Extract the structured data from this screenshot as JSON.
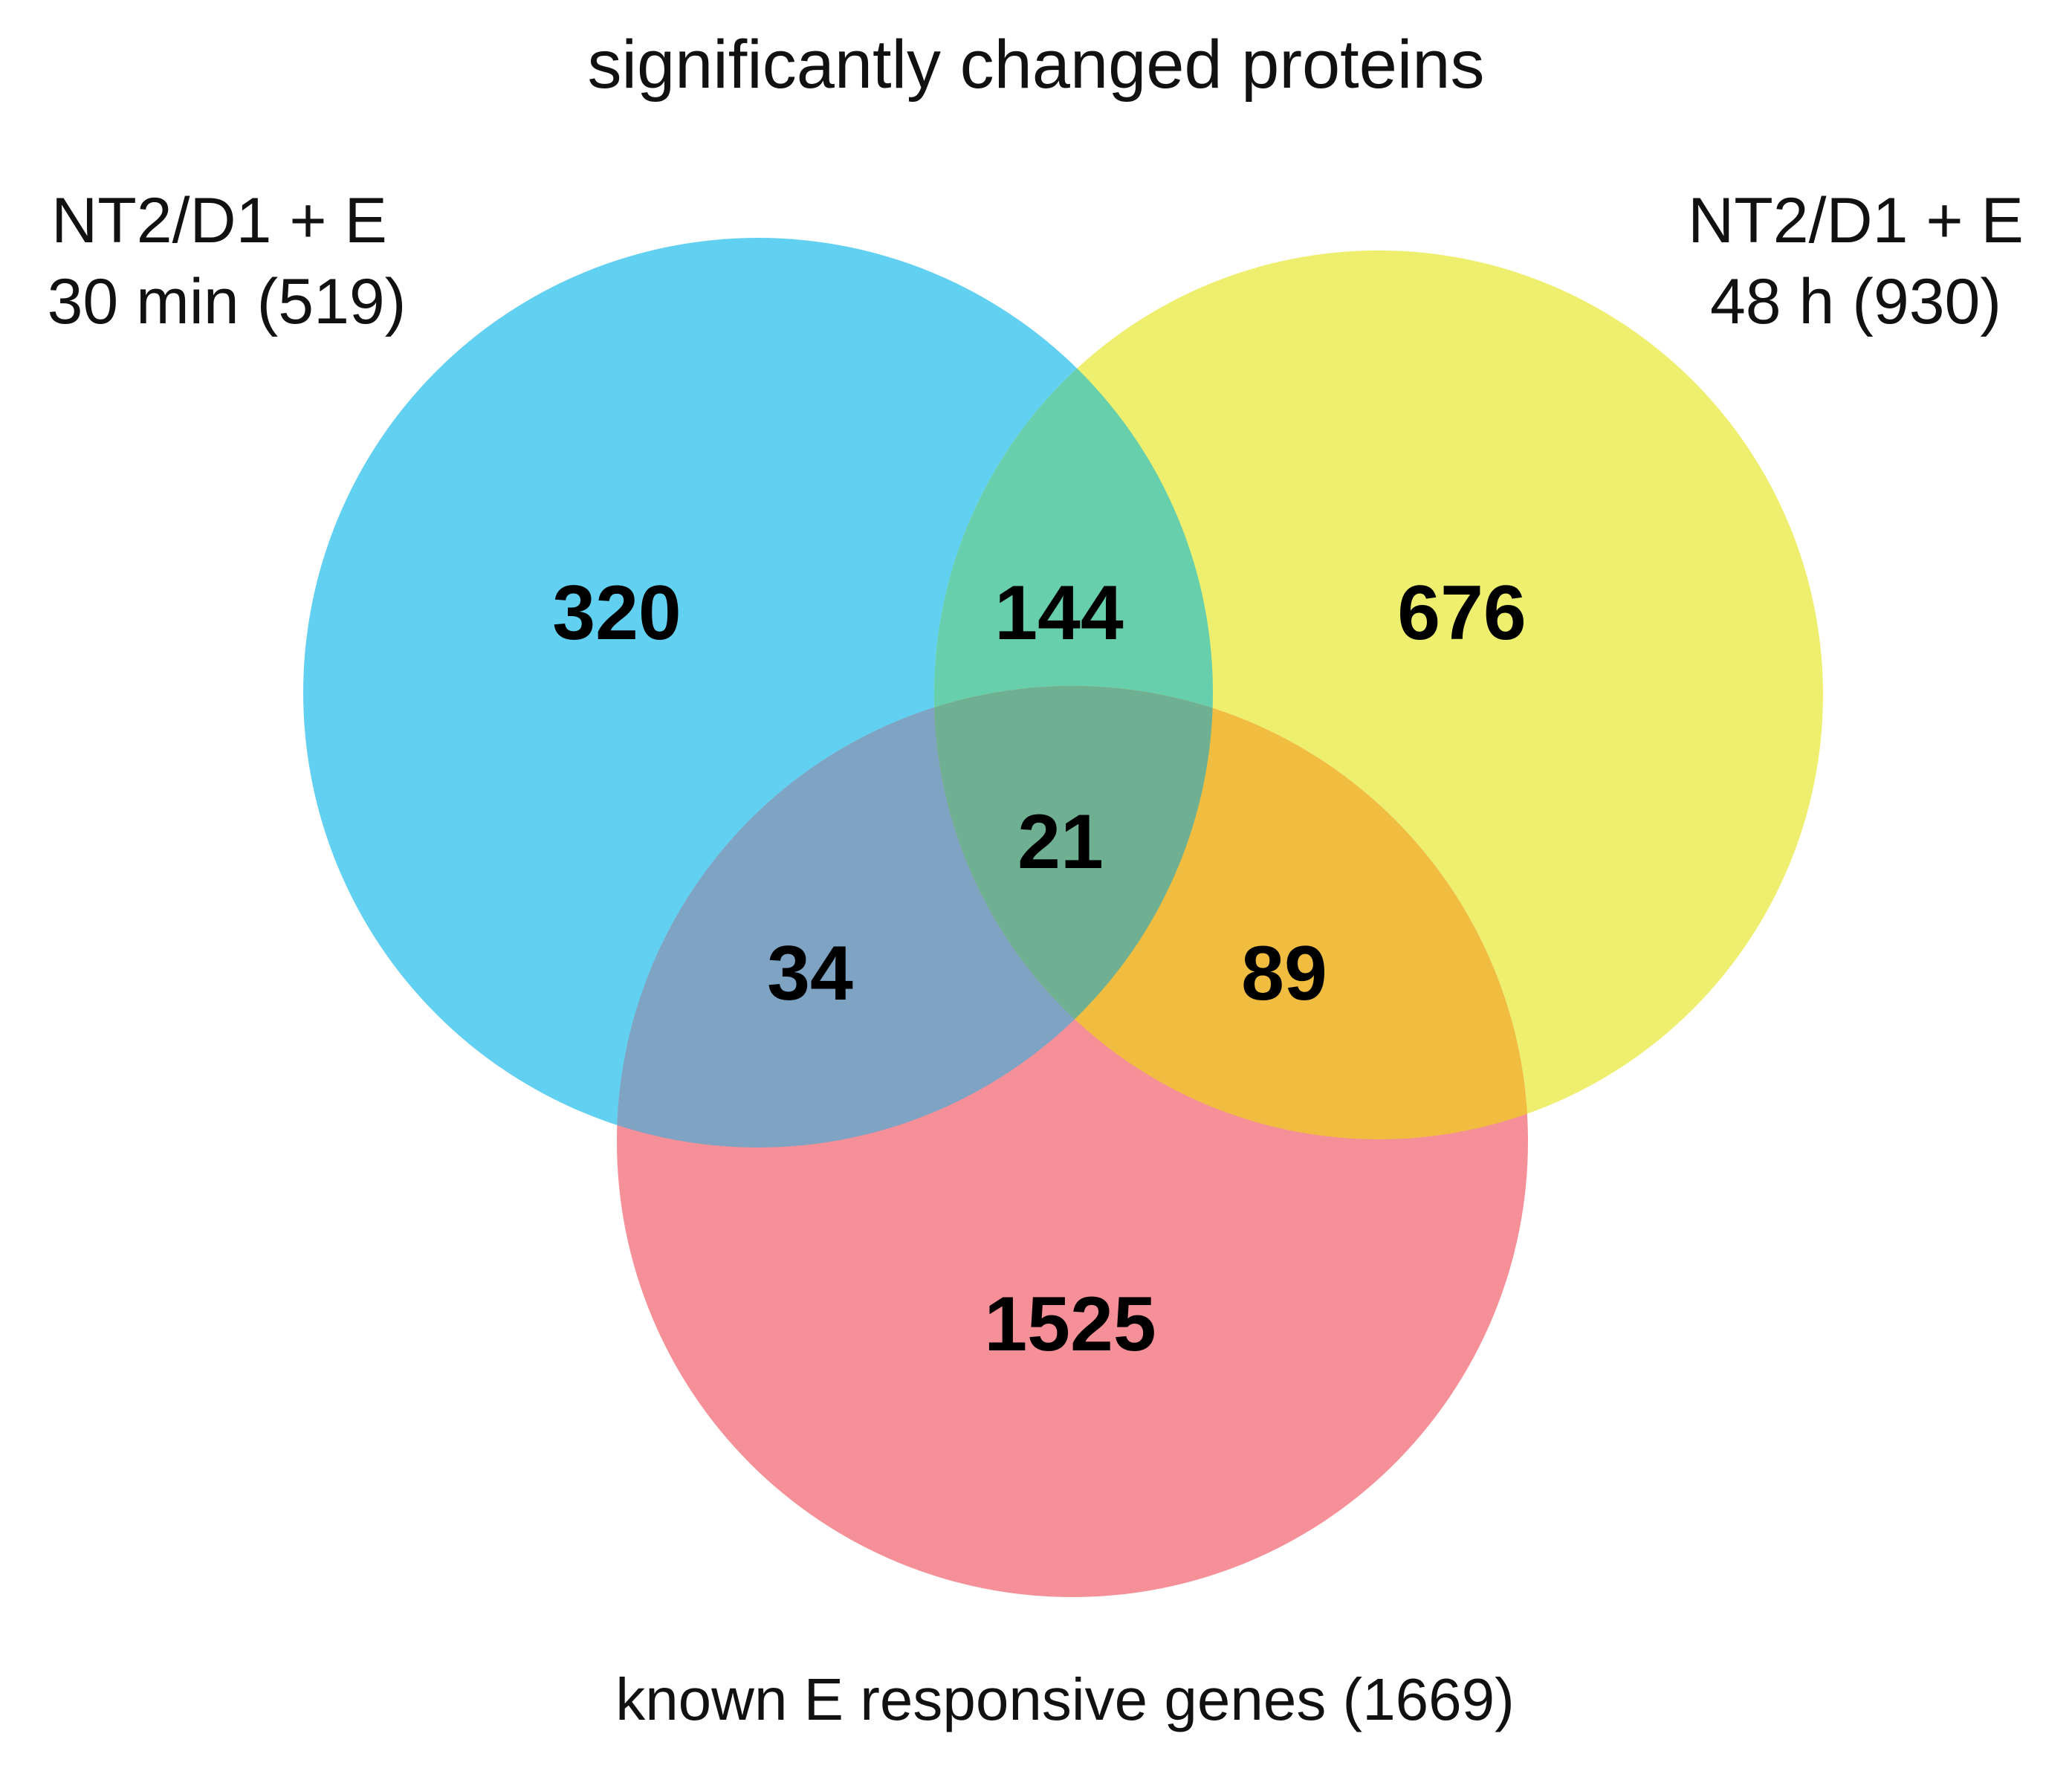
{
  "title": "significantly changed proteins",
  "sets": [
    {
      "id": "a",
      "label_line1": "NT2/D1 + E",
      "label_line2": "30 min (519)",
      "color": "#62d0f0"
    },
    {
      "id": "b",
      "label_line1": "NT2/D1 + E",
      "label_line2": "48 h (930)",
      "color": "#eeee6f"
    },
    {
      "id": "c",
      "label_line1": "known E responsive genes (1669)",
      "color": "#f59098"
    }
  ],
  "regions": {
    "a_only": "320",
    "ab": "144",
    "b_only": "676",
    "abc": "21",
    "ac": "34",
    "bc": "89",
    "c_only": "1525"
  },
  "region_colors": {
    "ab": "#68cfac",
    "ac": "#7ea3c3",
    "bc": "#f0bd40",
    "abc": "#70b092"
  }
}
